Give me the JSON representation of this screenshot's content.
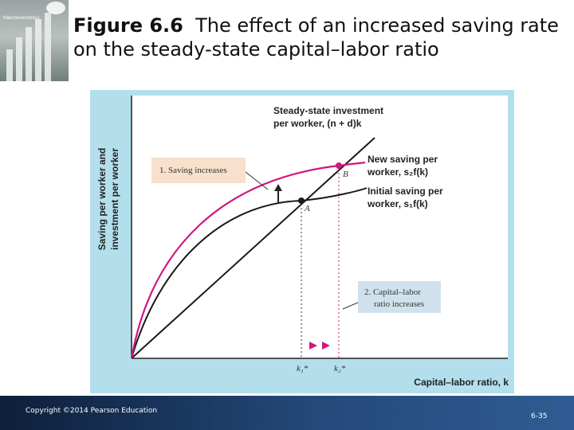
{
  "book": {
    "title": "Macroeconomics"
  },
  "slide": {
    "figure_label": "Figure 6.6",
    "title": "The effect of an increased saving rate on the steady-state capital–labor ratio"
  },
  "diagram": {
    "y_axis_label_line1": "Saving per worker and",
    "y_axis_label_line2": "investment per worker",
    "x_axis_label": "Capital–labor ratio, k",
    "investment_label_line1": "Steady-state investment",
    "investment_label_line2": "per worker, (n + d)k",
    "new_saving_label_line1": "New saving per",
    "new_saving_label_line2": "worker, s₂f(k)",
    "initial_saving_label_line1": "Initial saving per",
    "initial_saving_label_line2": "worker, s₁f(k)",
    "callout_saving": "1. Saving increases",
    "callout_ratio_line1": "2. Capital–labor",
    "callout_ratio_line2": "ratio increases",
    "point_a": "A",
    "point_b": "B",
    "k1_label": "k₁*",
    "k2_label": "k₂*",
    "colors": {
      "panel": "#b3dfec",
      "new_saving": "#d4157f",
      "initial_saving": "#1a1a1a",
      "callout": "#f7e0cc",
      "callout_ratio": "#cfe2ec"
    }
  },
  "footer": {
    "copyright": "Copyright ©2014 Pearson Education",
    "page": "6-35"
  }
}
